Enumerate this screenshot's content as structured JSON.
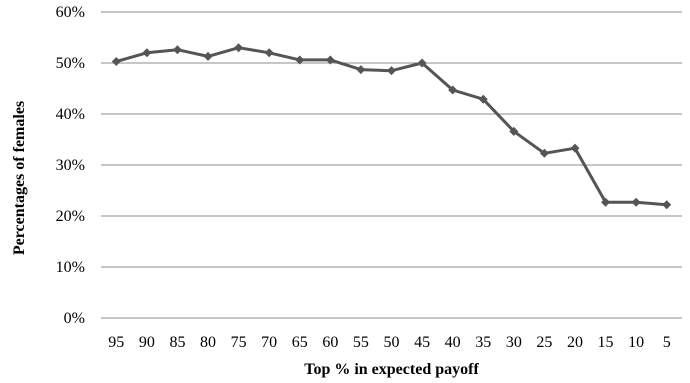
{
  "chart_data": {
    "type": "line",
    "title": "",
    "xlabel": "Top % in expected payoff",
    "ylabel": "Percentages  of  females",
    "categories": [
      "95",
      "90",
      "85",
      "80",
      "75",
      "70",
      "65",
      "60",
      "55",
      "50",
      "45",
      "40",
      "35",
      "30",
      "25",
      "20",
      "15",
      "10",
      "5"
    ],
    "series": [
      {
        "values": [
          50.3,
          52.0,
          52.6,
          51.3,
          53.0,
          52.0,
          50.6,
          50.6,
          48.7,
          48.5,
          50.0,
          44.7,
          42.9,
          36.6,
          32.3,
          33.3,
          22.7,
          22.7,
          22.2
        ],
        "color": "#555555",
        "marker": "diamond"
      }
    ],
    "ylim": [
      0,
      60
    ],
    "yticks": [
      "0%",
      "10%",
      "20%",
      "30%",
      "40%",
      "50%",
      "60%"
    ],
    "ytick_values": [
      0,
      10,
      20,
      30,
      40,
      50,
      60
    ],
    "grid": "horizontal",
    "legend": "none"
  }
}
